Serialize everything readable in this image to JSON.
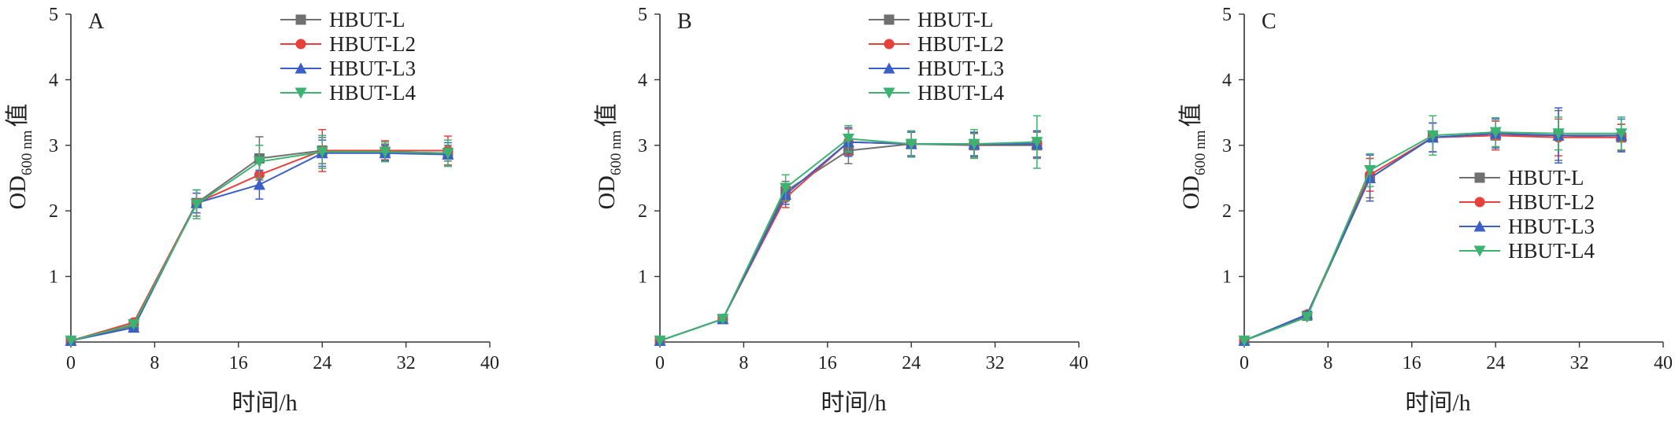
{
  "chart_data": [
    {
      "type": "line",
      "panel_label": "A",
      "xlabel": "时间/h",
      "ylabel": {
        "main": "OD",
        "sub": "600 nm",
        "suffix": "值"
      },
      "xlim": [
        0,
        40
      ],
      "ylim": [
        0,
        5
      ],
      "xticks": [
        0,
        8,
        16,
        24,
        32,
        40
      ],
      "yticks": [
        1,
        2,
        3,
        4,
        5
      ],
      "legend_position": "top-right",
      "x": [
        0,
        6,
        12,
        18,
        24,
        30,
        36
      ],
      "series": [
        {
          "name": "HBUT-L",
          "color": "#707070",
          "marker": "square",
          "values": [
            0.02,
            0.25,
            2.12,
            2.8,
            2.92,
            2.9,
            2.88
          ],
          "errors": [
            0.01,
            0.03,
            0.2,
            0.33,
            0.2,
            0.12,
            0.12
          ]
        },
        {
          "name": "HBUT-L2",
          "color": "#e8413c",
          "marker": "circle",
          "values": [
            0.02,
            0.3,
            2.12,
            2.55,
            2.92,
            2.92,
            2.92
          ],
          "errors": [
            0.01,
            0.03,
            0.15,
            0.22,
            0.32,
            0.15,
            0.22
          ]
        },
        {
          "name": "HBUT-L3",
          "color": "#3a5fc8",
          "marker": "triangle-up",
          "values": [
            0.02,
            0.22,
            2.12,
            2.4,
            2.88,
            2.88,
            2.86
          ],
          "errors": [
            0.01,
            0.03,
            0.15,
            0.22,
            0.2,
            0.12,
            0.18
          ]
        },
        {
          "name": "HBUT-L4",
          "color": "#3cb371",
          "marker": "triangle-down",
          "values": [
            0.02,
            0.27,
            2.1,
            2.75,
            2.9,
            2.9,
            2.88
          ],
          "errors": [
            0.01,
            0.03,
            0.22,
            0.25,
            0.25,
            0.15,
            0.2
          ]
        }
      ]
    },
    {
      "type": "line",
      "panel_label": "B",
      "xlabel": "时间/h",
      "ylabel": {
        "main": "OD",
        "sub": "600 nm",
        "suffix": "值"
      },
      "xlim": [
        0,
        40
      ],
      "ylim": [
        0,
        5
      ],
      "xticks": [
        0,
        8,
        16,
        24,
        32,
        40
      ],
      "yticks": [
        1,
        2,
        3,
        4,
        5
      ],
      "legend_position": "top-right",
      "x": [
        0,
        6,
        12,
        18,
        24,
        30,
        36
      ],
      "series": [
        {
          "name": "HBUT-L",
          "color": "#707070",
          "marker": "square",
          "values": [
            0.02,
            0.35,
            2.3,
            2.92,
            3.02,
            3.0,
            3.0
          ],
          "errors": [
            0.01,
            0.03,
            0.15,
            0.2,
            0.2,
            0.18,
            0.2
          ]
        },
        {
          "name": "HBUT-L2",
          "color": "#e8413c",
          "marker": "circle",
          "values": [
            0.02,
            0.35,
            2.2,
            3.05,
            3.02,
            3.02,
            3.02
          ],
          "errors": [
            0.01,
            0.03,
            0.15,
            0.2,
            0.18,
            0.18,
            0.2
          ]
        },
        {
          "name": "HBUT-L3",
          "color": "#3a5fc8",
          "marker": "triangle-up",
          "values": [
            0.02,
            0.35,
            2.25,
            3.05,
            3.02,
            3.02,
            3.02
          ],
          "errors": [
            0.01,
            0.03,
            0.15,
            0.22,
            0.18,
            0.18,
            0.2
          ]
        },
        {
          "name": "HBUT-L4",
          "color": "#3cb371",
          "marker": "triangle-down",
          "values": [
            0.02,
            0.35,
            2.35,
            3.1,
            3.02,
            3.02,
            3.05
          ],
          "errors": [
            0.01,
            0.03,
            0.2,
            0.2,
            0.2,
            0.22,
            0.4
          ]
        }
      ]
    },
    {
      "type": "line",
      "panel_label": "C",
      "xlabel": "时间/h",
      "ylabel": {
        "main": "OD",
        "sub": "600 nm",
        "suffix": "值"
      },
      "xlim": [
        0,
        40
      ],
      "ylim": [
        0,
        5
      ],
      "xticks": [
        0,
        8,
        16,
        24,
        32,
        40
      ],
      "yticks": [
        1,
        2,
        3,
        4,
        5
      ],
      "legend_position": "center-right",
      "x": [
        0,
        6,
        12,
        18,
        24,
        30,
        36
      ],
      "series": [
        {
          "name": "HBUT-L",
          "color": "#707070",
          "marker": "square",
          "values": [
            0.02,
            0.4,
            2.5,
            3.12,
            3.15,
            3.15,
            3.12
          ],
          "errors": [
            0.01,
            0.04,
            0.3,
            0.22,
            0.22,
            0.38,
            0.2
          ]
        },
        {
          "name": "HBUT-L2",
          "color": "#e8413c",
          "marker": "circle",
          "values": [
            0.02,
            0.42,
            2.55,
            3.12,
            3.15,
            3.12,
            3.12
          ],
          "errors": [
            0.01,
            0.04,
            0.25,
            0.22,
            0.22,
            0.28,
            0.2
          ]
        },
        {
          "name": "HBUT-L3",
          "color": "#3a5fc8",
          "marker": "triangle-up",
          "values": [
            0.02,
            0.42,
            2.5,
            3.12,
            3.18,
            3.15,
            3.15
          ],
          "errors": [
            0.01,
            0.04,
            0.35,
            0.22,
            0.22,
            0.42,
            0.25
          ]
        },
        {
          "name": "HBUT-L4",
          "color": "#3cb371",
          "marker": "triangle-down",
          "values": [
            0.02,
            0.38,
            2.62,
            3.15,
            3.2,
            3.18,
            3.18
          ],
          "errors": [
            0.01,
            0.04,
            0.25,
            0.3,
            0.22,
            0.25,
            0.25
          ]
        }
      ]
    }
  ]
}
